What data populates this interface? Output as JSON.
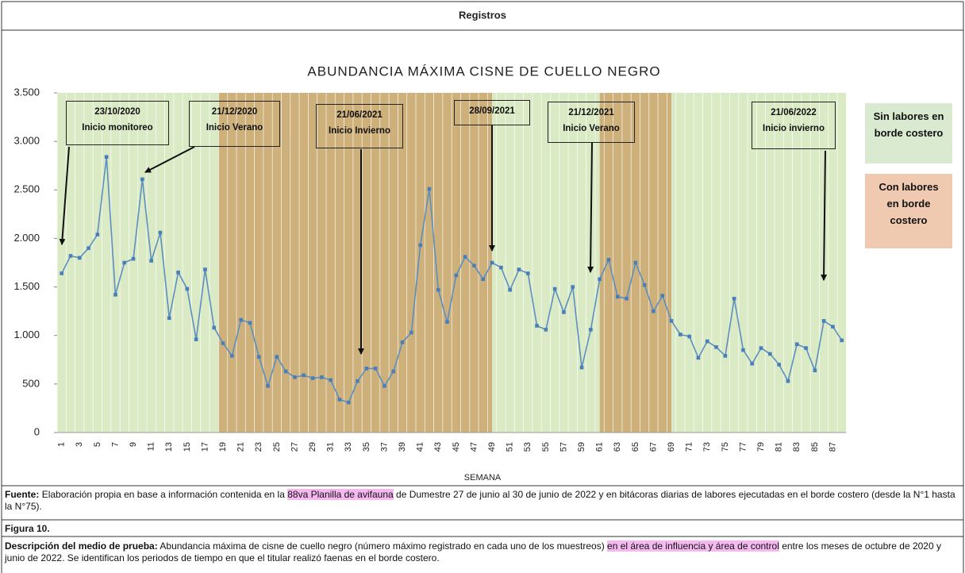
{
  "header": {
    "title": "Registros"
  },
  "chart_data": {
    "type": "line",
    "title": "ABUNDANCIA MÁXIMA CISNE DE CUELLO NEGRO",
    "x_label": "SEMANA",
    "categories": [
      1,
      null,
      3,
      null,
      5,
      null,
      7,
      null,
      9,
      null,
      11,
      null,
      13,
      null,
      15,
      null,
      17,
      null,
      19,
      null,
      21,
      null,
      23,
      null,
      25,
      null,
      27,
      null,
      29,
      null,
      31,
      null,
      33,
      null,
      35,
      null,
      37,
      null,
      39,
      null,
      41,
      null,
      43,
      null,
      45,
      null,
      47,
      null,
      49,
      null,
      51,
      null,
      53,
      null,
      55,
      null,
      57,
      null,
      59,
      null,
      61,
      null,
      63,
      null,
      65,
      null,
      67,
      null,
      69,
      null,
      71,
      null,
      73,
      null,
      75,
      null,
      77,
      null,
      79,
      null,
      81,
      null,
      83,
      null,
      85,
      null,
      87,
      null
    ],
    "values": [
      1640,
      1820,
      1800,
      1900,
      2040,
      2840,
      1420,
      1750,
      1790,
      2610,
      1770,
      2060,
      1180,
      1650,
      1480,
      960,
      1680,
      1080,
      920,
      790,
      1160,
      1130,
      780,
      480,
      780,
      630,
      570,
      590,
      560,
      570,
      540,
      340,
      310,
      530,
      660,
      660,
      480,
      630,
      930,
      1030,
      1930,
      2510,
      1470,
      1140,
      1620,
      1810,
      1720,
      1580,
      1750,
      1700,
      1470,
      1680,
      1640,
      1100,
      1060,
      1480,
      1240,
      1500,
      670,
      1060,
      1580,
      1780,
      1400,
      1380,
      1750,
      1520,
      1250,
      1410,
      1150,
      1010,
      990,
      770,
      940,
      880,
      790,
      1380,
      850,
      710,
      870,
      810,
      700,
      530,
      910,
      870,
      640,
      1150,
      1090,
      950
    ],
    "color": "#5b8fc0",
    "ylim": [
      0,
      3500
    ],
    "yticks": [
      0,
      500,
      {
        "value": 1000,
        "label": "1.000"
      },
      {
        "value": 1500,
        "label": "1.500"
      },
      {
        "value": 2000,
        "label": "2.000"
      },
      {
        "value": 2500,
        "label": "2.500"
      },
      {
        "value": 3000,
        "label": "3.000"
      },
      {
        "value": 3500,
        "label": "3.500"
      }
    ],
    "legend": [
      {
        "name": "Sin labores en borde costero",
        "color": "#d9ead0"
      },
      {
        "name": "Con labores en borde costero",
        "color": "#f0c9b1"
      }
    ],
    "periods": [
      {
        "start": 0.5,
        "end": 18.5,
        "color": "#d9eac4"
      },
      {
        "start": 18.5,
        "end": 49,
        "color": "#cdb07a"
      },
      {
        "start": 49,
        "end": 61,
        "color": "#d9eac4"
      },
      {
        "start": 61,
        "end": 69,
        "color": "#cdb07a"
      },
      {
        "start": 69,
        "end": 88.5,
        "color": "#d9eac4"
      }
    ],
    "annotations": [
      {
        "date": "23/10/2020",
        "label": "Inicio monitoreo"
      },
      {
        "date": "21/12/2020",
        "label": "Inicio Verano"
      },
      {
        "date": "21/06/2021",
        "label": "Inicio Invierno"
      },
      {
        "date": "28/09/2021"
      },
      {
        "date": "21/12/2021",
        "label": "Inicio Verano"
      },
      {
        "date": "21/06/2022",
        "label": "Inicio invierno"
      }
    ]
  },
  "source": {
    "label": "Fuente:",
    "text": "Elaboración propia en base a información contenida en la",
    "highlight": "88va Planilla de avifauna",
    "rest": "de Dumestre 27 de junio al 30 de junio de 2022 y en bitácoras diarias de labores ejecutadas en el borde costero (desde la N°1 hasta la N°75)."
  },
  "figure": {
    "label": "Figura 10."
  },
  "description": {
    "label": "Descripción del medio de prueba:",
    "text": "Abundancia máxima de cisne de cuello negro (número máximo registrado en cada uno de los muestreos)",
    "highlight": "en el área de influencia y área de control",
    "rest": "entre los meses de octubre de 2020 y junio de 2022. Se identifican los periodos de tiempo en que el titular realizó faenas en el borde costero."
  }
}
